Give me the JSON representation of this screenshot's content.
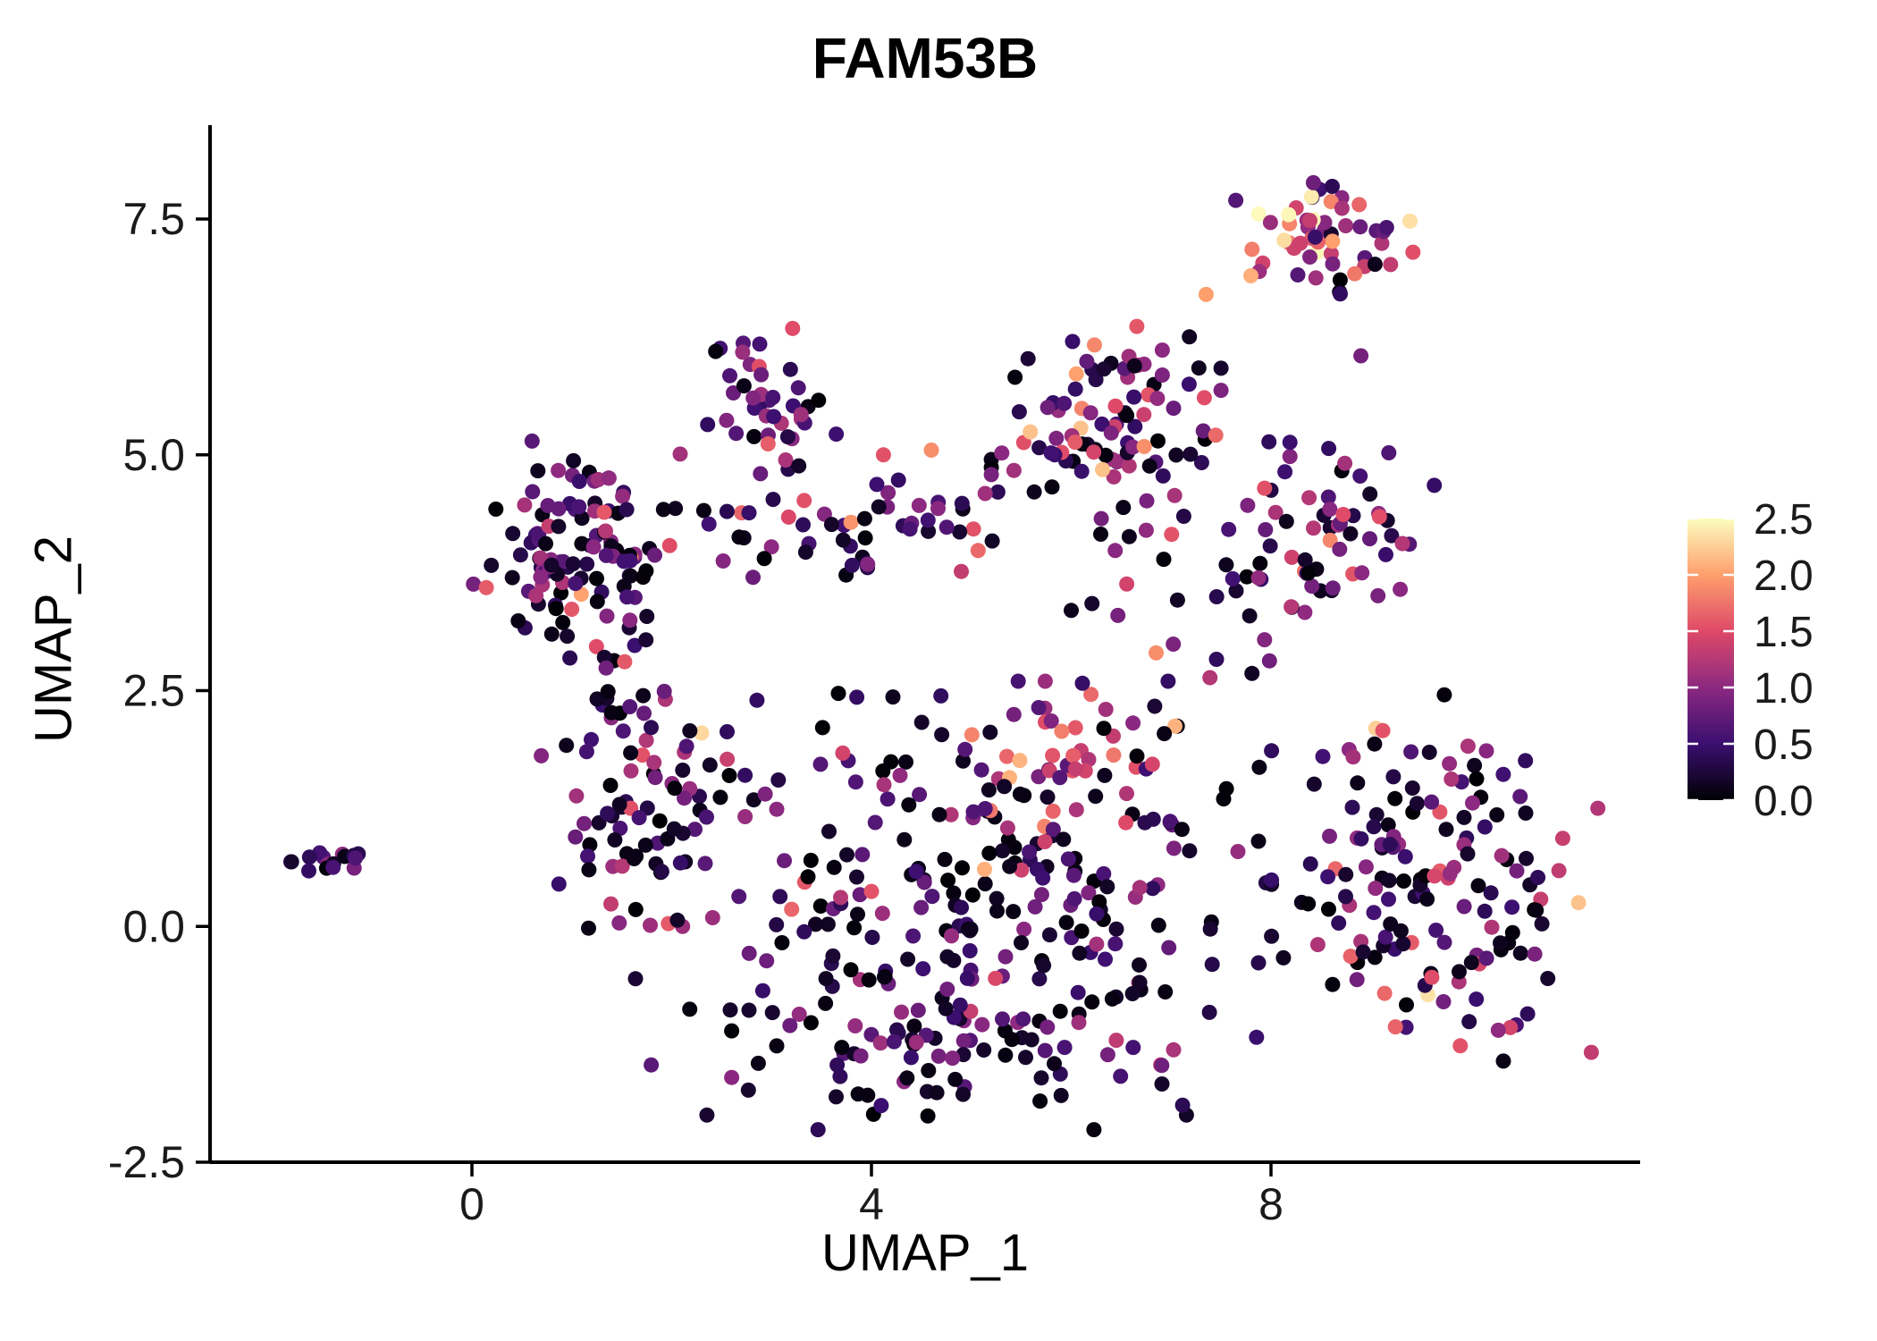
{
  "chart_data": {
    "type": "scatter",
    "title": "FAM53B",
    "xlabel": "UMAP_1",
    "ylabel": "UMAP_2",
    "x_tick_values": [
      0,
      4,
      8
    ],
    "x_tick_labels": [
      "0",
      "4",
      "8"
    ],
    "y_tick_values": [
      -2.5,
      0,
      2.5,
      5,
      7.5
    ],
    "y_tick_labels": [
      "-2.5",
      "0.0",
      "2.5",
      "5.0",
      "7.5"
    ],
    "x_range": [
      -2.6,
      11.7
    ],
    "y_range": [
      -2.6,
      8.3
    ],
    "grid": false,
    "background": "#ffffff",
    "axis_color": "#000000",
    "text_color": "#1a1a1a",
    "point_radius": 8.5,
    "legend": {
      "position": "right",
      "colorscale": "magma",
      "tick_values": [
        0,
        0.5,
        1,
        1.5,
        2,
        2.5
      ],
      "tick_labels": [
        "0.0",
        "0.5",
        "1.0",
        "1.5",
        "2.0",
        "2.5"
      ],
      "stops": [
        {
          "v": 0,
          "color": "#000004"
        },
        {
          "v": 0.5,
          "color": "#3b0f70"
        },
        {
          "v": 1,
          "color": "#8c2981"
        },
        {
          "v": 1.5,
          "color": "#de4968"
        },
        {
          "v": 2,
          "color": "#fe9f6d"
        },
        {
          "v": 2.5,
          "color": "#fcfdbf"
        }
      ]
    },
    "value_bins": [
      [
        0,
        0.22
      ],
      [
        0.3,
        0.7
      ],
      [
        0.75,
        1.25
      ],
      [
        1.3,
        1.7
      ],
      [
        1.75,
        2.2
      ],
      [
        2.3,
        2.5
      ]
    ],
    "seed": 101,
    "clusters": [
      {
        "name": "far-left-islet",
        "n": 16,
        "cx": -1.4,
        "cy": 0.68,
        "sx": 0.18,
        "sy": 0.07,
        "weights": [
          2,
          5,
          7,
          0.5,
          0,
          0
        ]
      },
      {
        "name": "left-upper-cluster",
        "n": 115,
        "cx": 1.05,
        "cy": 4.0,
        "sx": 0.45,
        "sy": 0.55,
        "weights": [
          8,
          7,
          6,
          1.5,
          0.3,
          0
        ]
      },
      {
        "name": "left-lower-arm",
        "n": 85,
        "cx": 1.7,
        "cy": 1.4,
        "sx": 0.45,
        "sy": 0.85,
        "weights": [
          9,
          6,
          5,
          1,
          0.1,
          0
        ]
      },
      {
        "name": "mid-top-cluster",
        "n": 42,
        "cx": 3.05,
        "cy": 5.6,
        "sx": 0.3,
        "sy": 0.35,
        "weights": [
          3,
          6,
          8,
          1,
          0.2,
          0
        ]
      },
      {
        "name": "mid-band",
        "n": 55,
        "cx": 3.9,
        "cy": 4.25,
        "sx": 0.9,
        "sy": 0.25,
        "weights": [
          7,
          5,
          5,
          2,
          0.6,
          0.2
        ]
      },
      {
        "name": "upper-right-middle",
        "n": 95,
        "cx": 6.35,
        "cy": 5.25,
        "sx": 0.5,
        "sy": 0.55,
        "weights": [
          8,
          6,
          7,
          3,
          1,
          0.2
        ]
      },
      {
        "name": "top-right-cluster",
        "n": 56,
        "cx": 8.5,
        "cy": 7.35,
        "sx": 0.42,
        "sy": 0.28,
        "weights": [
          2,
          3,
          5,
          5,
          5,
          3
        ]
      },
      {
        "name": "right-mid-cluster",
        "n": 55,
        "cx": 8.6,
        "cy": 4.25,
        "sx": 0.45,
        "sy": 0.45,
        "weights": [
          5,
          5,
          6,
          3,
          1,
          0.2
        ]
      },
      {
        "name": "central-blob",
        "n": 270,
        "cx": 4.9,
        "cy": 0.3,
        "sx": 1.35,
        "sy": 1.0,
        "weights": [
          10,
          7,
          6,
          1.5,
          0.2,
          0
        ]
      },
      {
        "name": "central-pink-patch",
        "n": 35,
        "cx": 6.1,
        "cy": 1.8,
        "sx": 0.5,
        "sy": 0.4,
        "weights": [
          2,
          3,
          5,
          5,
          1.5,
          0.2
        ]
      },
      {
        "name": "bottom-arc",
        "n": 60,
        "cx": 4.9,
        "cy": -1.35,
        "sx": 1.0,
        "sy": 0.35,
        "weights": [
          9,
          6,
          4,
          0.5,
          0,
          0
        ]
      },
      {
        "name": "right-lower-cluster",
        "n": 150,
        "cx": 9.6,
        "cy": 0.5,
        "sx": 0.75,
        "sy": 0.85,
        "weights": [
          8,
          6,
          6,
          2,
          0.4,
          0.1
        ]
      },
      {
        "name": "right-connector",
        "n": 30,
        "cx": 7.3,
        "cy": 3.6,
        "sx": 0.7,
        "sy": 0.8,
        "weights": [
          7,
          4,
          4,
          1,
          0.3,
          0
        ]
      }
    ],
    "extra_points": [
      [
        7.35,
        6.7,
        2.0
      ],
      [
        8.9,
        6.05,
        0.85
      ],
      [
        4.6,
        5.05,
        1.9
      ],
      [
        4.12,
        5.0,
        1.55
      ],
      [
        2.3,
        2.05,
        2.3
      ],
      [
        9.05,
        2.1,
        2.25
      ],
      [
        6.85,
        2.9,
        1.9
      ],
      [
        5.2,
        4.95,
        0.1
      ],
      [
        6.0,
        3.35,
        0.1
      ]
    ]
  }
}
